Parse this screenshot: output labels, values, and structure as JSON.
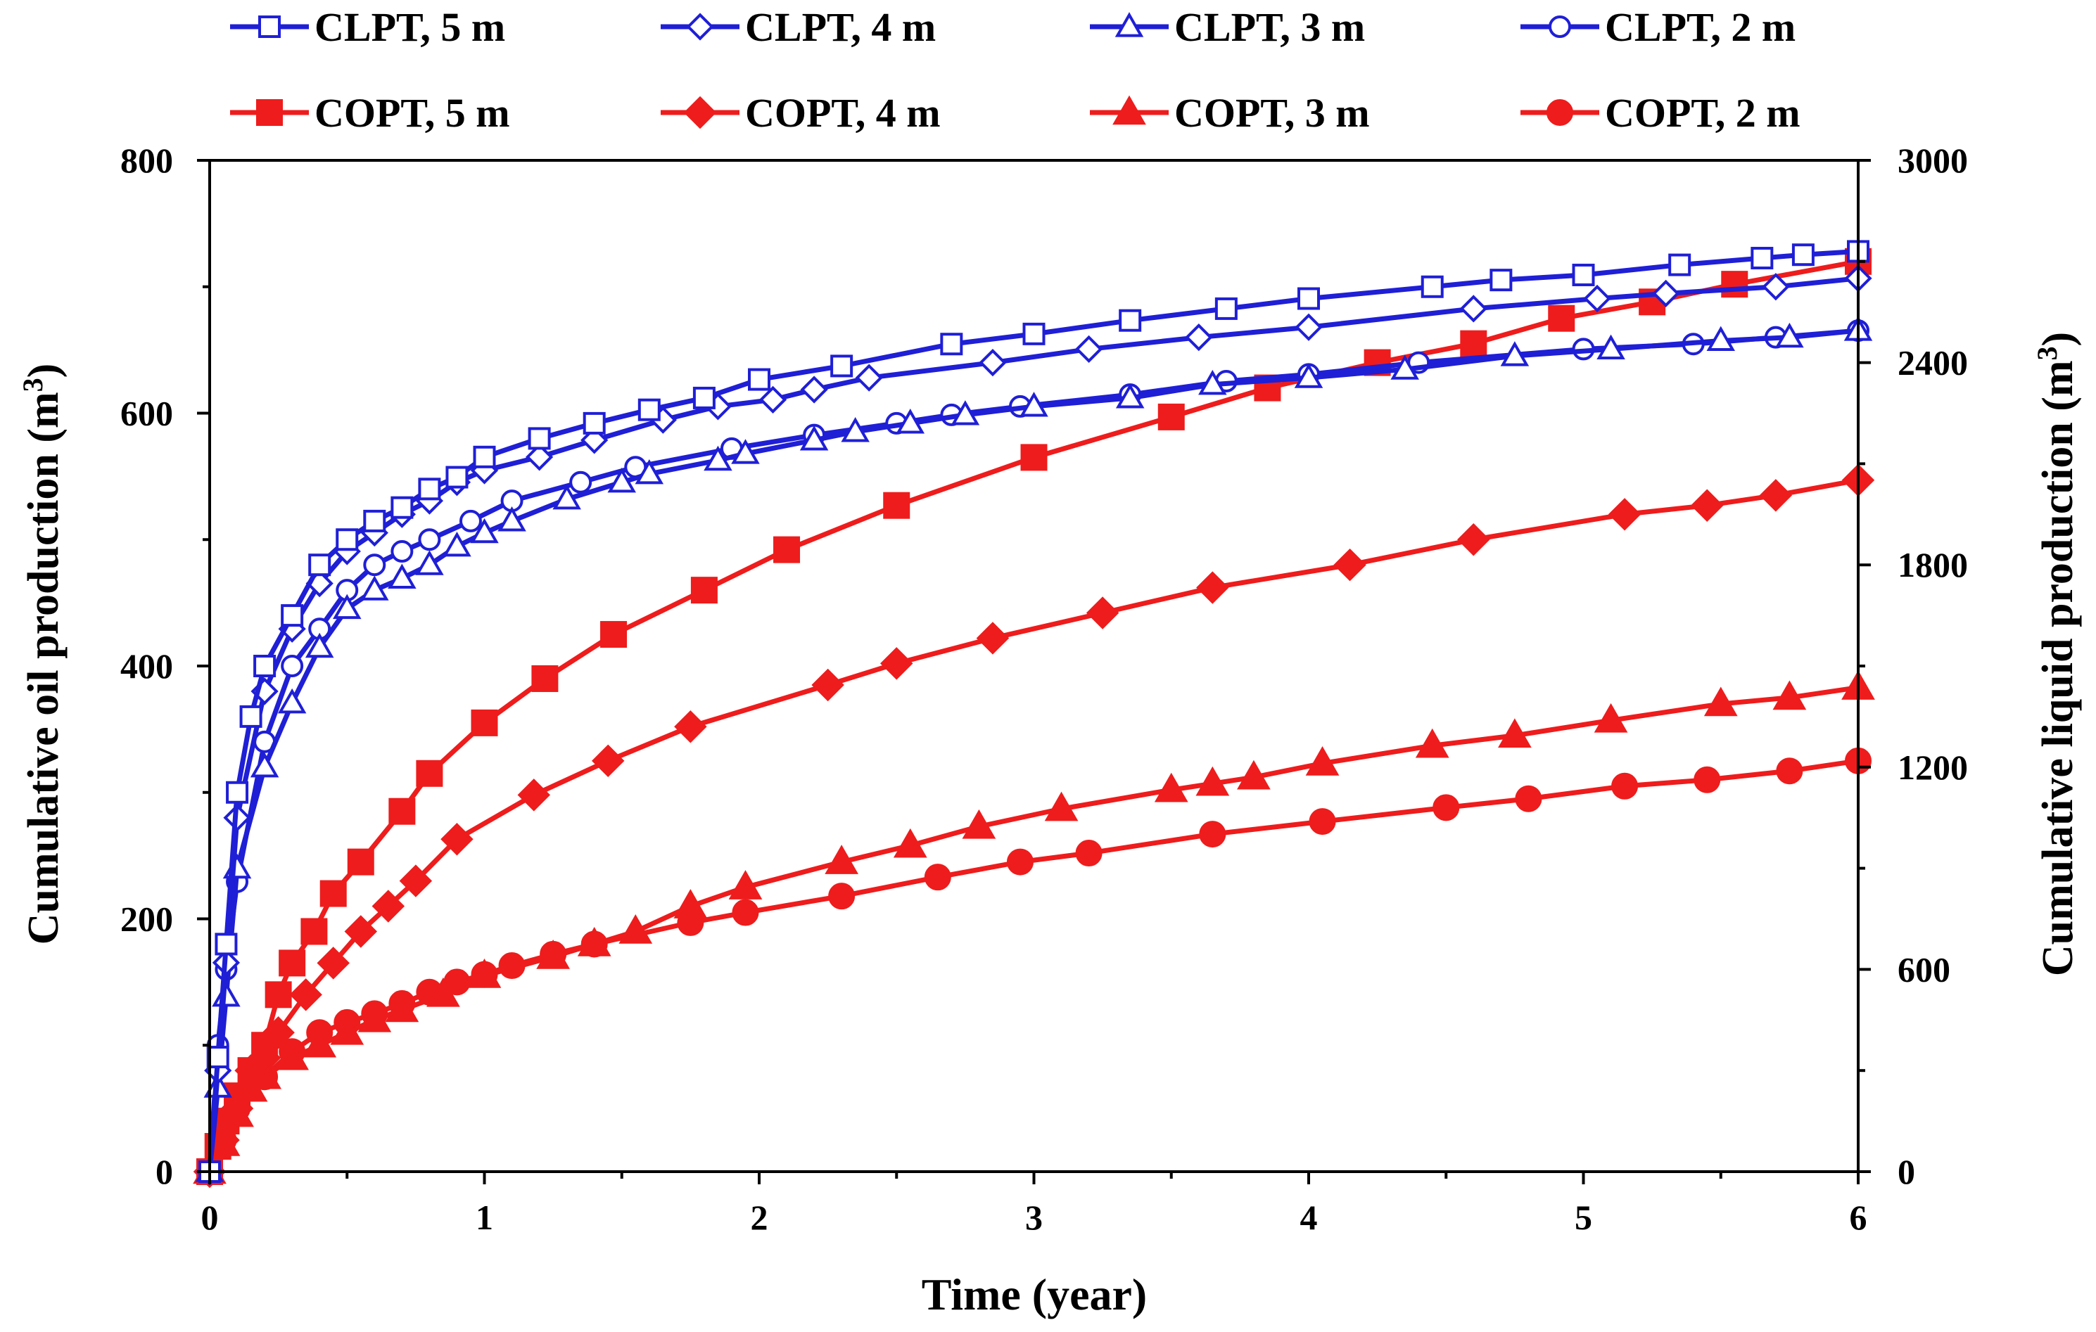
{
  "chart_data": {
    "type": "line",
    "xlabel": "Time (year)",
    "ylabel_left": "Cumulative oil production (m3)",
    "ylabel_right": "Cumulative liquid production (m3)",
    "ylabel_left_text": "Cumulative oil production (m",
    "ylabel_right_text": "Cumulative liquid production (m",
    "superscript": "3",
    "close_paren": ")",
    "xlim": [
      0,
      6
    ],
    "ylim_left": [
      0,
      800
    ],
    "ylim_right": [
      0,
      3000
    ],
    "x_ticks": [
      "0",
      "1",
      "2",
      "3",
      "4",
      "5",
      "6"
    ],
    "y_left_ticks": [
      "0",
      "200",
      "400",
      "600",
      "800"
    ],
    "y_right_ticks": [
      "0",
      "600",
      "1200",
      "1800",
      "2400",
      "3000"
    ],
    "grid": false,
    "legend_position": "top",
    "series": [
      {
        "name": "CLPT, 5 m",
        "axis": "right",
        "color": "#1f1fd6",
        "marker": "square",
        "filled": false,
        "x": [
          0,
          0.03,
          0.06,
          0.1,
          0.15,
          0.2,
          0.3,
          0.4,
          0.5,
          0.6,
          0.7,
          0.8,
          0.9,
          1.0,
          1.2,
          1.4,
          1.6,
          1.8,
          2.0,
          2.3,
          2.7,
          3.0,
          3.35,
          3.7,
          4.0,
          4.45,
          4.7,
          5.0,
          5.35,
          5.65,
          5.8,
          6.0
        ],
        "y": [
          0,
          340,
          675,
          1125,
          1350,
          1500,
          1650,
          1800,
          1875,
          1930,
          1970,
          2025,
          2060,
          2120,
          2175,
          2220,
          2260,
          2295,
          2350,
          2390,
          2455,
          2485,
          2525,
          2560,
          2590,
          2625,
          2645,
          2660,
          2690,
          2710,
          2720,
          2730
        ]
      },
      {
        "name": "CLPT, 4 m",
        "axis": "right",
        "color": "#1f1fd6",
        "marker": "diamond",
        "filled": false,
        "x": [
          0,
          0.03,
          0.06,
          0.1,
          0.2,
          0.3,
          0.4,
          0.5,
          0.6,
          0.7,
          0.8,
          0.9,
          1.0,
          1.2,
          1.4,
          1.65,
          1.85,
          2.05,
          2.2,
          2.4,
          2.85,
          3.2,
          3.6,
          4.0,
          4.6,
          5.05,
          5.3,
          5.7,
          6.0
        ],
        "y": [
          0,
          300,
          620,
          1050,
          1425,
          1610,
          1745,
          1840,
          1895,
          1950,
          1990,
          2045,
          2080,
          2120,
          2170,
          2230,
          2270,
          2290,
          2320,
          2355,
          2400,
          2440,
          2475,
          2505,
          2560,
          2590,
          2605,
          2625,
          2650
        ]
      },
      {
        "name": "CLPT, 3 m",
        "axis": "right",
        "color": "#1f1fd6",
        "marker": "triangle",
        "filled": false,
        "x": [
          0,
          0.03,
          0.06,
          0.1,
          0.2,
          0.3,
          0.4,
          0.5,
          0.6,
          0.7,
          0.8,
          0.9,
          1.0,
          1.1,
          1.3,
          1.5,
          1.6,
          1.85,
          1.95,
          2.2,
          2.35,
          2.55,
          2.75,
          3.0,
          3.35,
          3.65,
          4.0,
          4.35,
          4.75,
          5.1,
          5.5,
          5.75,
          6.0
        ],
        "y": [
          0,
          250,
          520,
          900,
          1200,
          1390,
          1555,
          1670,
          1725,
          1760,
          1800,
          1855,
          1895,
          1930,
          1995,
          2045,
          2070,
          2110,
          2130,
          2170,
          2195,
          2220,
          2245,
          2270,
          2295,
          2335,
          2355,
          2380,
          2420,
          2440,
          2465,
          2475,
          2495
        ]
      },
      {
        "name": "CLPT, 2 m",
        "axis": "right",
        "color": "#1f1fd6",
        "marker": "circle",
        "filled": false,
        "x": [
          0,
          0.03,
          0.06,
          0.1,
          0.2,
          0.3,
          0.4,
          0.5,
          0.6,
          0.7,
          0.8,
          0.95,
          1.1,
          1.35,
          1.55,
          1.9,
          2.2,
          2.5,
          2.7,
          2.95,
          3.35,
          3.7,
          4.0,
          4.4,
          5.0,
          5.4,
          5.7,
          6.0
        ],
        "y": [
          0,
          375,
          600,
          860,
          1275,
          1500,
          1610,
          1725,
          1800,
          1840,
          1875,
          1930,
          1990,
          2045,
          2090,
          2145,
          2185,
          2220,
          2245,
          2270,
          2305,
          2345,
          2365,
          2400,
          2440,
          2455,
          2475,
          2495
        ]
      },
      {
        "name": "COPT, 5 m",
        "axis": "left",
        "color": "#ee1c1c",
        "marker": "square",
        "filled": true,
        "x": [
          0,
          0.03,
          0.06,
          0.1,
          0.15,
          0.2,
          0.25,
          0.3,
          0.38,
          0.45,
          0.55,
          0.7,
          0.8,
          1.0,
          1.22,
          1.47,
          1.8,
          2.1,
          2.5,
          3.0,
          3.5,
          3.85,
          4.25,
          4.6,
          4.92,
          5.25,
          5.55,
          6.0
        ],
        "y": [
          0,
          20,
          40,
          60,
          80,
          100,
          140,
          165,
          190,
          220,
          245,
          285,
          315,
          355,
          390,
          425,
          460,
          492,
          527,
          565,
          597,
          620,
          640,
          655,
          675,
          688,
          702,
          720
        ]
      },
      {
        "name": "COPT, 4 m",
        "axis": "left",
        "color": "#ee1c1c",
        "marker": "diamond",
        "filled": true,
        "x": [
          0,
          0.05,
          0.1,
          0.15,
          0.2,
          0.25,
          0.35,
          0.45,
          0.55,
          0.65,
          0.75,
          0.9,
          1.18,
          1.45,
          1.75,
          2.25,
          2.5,
          2.85,
          3.25,
          3.65,
          4.15,
          4.6,
          5.15,
          5.45,
          5.7,
          6.0
        ],
        "y": [
          0,
          25,
          50,
          80,
          90,
          110,
          140,
          165,
          190,
          210,
          230,
          263,
          298,
          325,
          352,
          385,
          402,
          422,
          442,
          462,
          480,
          500,
          520,
          527,
          535,
          547
        ]
      },
      {
        "name": "COPT, 3 m",
        "axis": "left",
        "color": "#ee1c1c",
        "marker": "triangle",
        "filled": true,
        "x": [
          0,
          0.05,
          0.1,
          0.15,
          0.2,
          0.3,
          0.4,
          0.5,
          0.6,
          0.7,
          0.85,
          1.0,
          1.25,
          1.4,
          1.55,
          1.75,
          1.95,
          2.3,
          2.55,
          2.8,
          3.1,
          3.5,
          3.65,
          3.8,
          4.05,
          4.45,
          4.75,
          5.1,
          5.5,
          5.75,
          6.0
        ],
        "y": [
          0,
          22,
          45,
          65,
          75,
          90,
          100,
          110,
          120,
          128,
          140,
          155,
          170,
          180,
          190,
          210,
          225,
          245,
          258,
          273,
          287,
          302,
          307,
          312,
          323,
          337,
          345,
          357,
          370,
          375,
          383
        ]
      },
      {
        "name": "COPT, 2 m",
        "axis": "left",
        "color": "#ee1c1c",
        "marker": "circle",
        "filled": true,
        "x": [
          0,
          0.05,
          0.1,
          0.2,
          0.3,
          0.4,
          0.5,
          0.6,
          0.7,
          0.8,
          0.9,
          1.0,
          1.1,
          1.25,
          1.4,
          1.75,
          1.95,
          2.3,
          2.65,
          2.95,
          3.2,
          3.65,
          4.05,
          4.5,
          4.8,
          5.15,
          5.45,
          5.75,
          6.0
        ],
        "y": [
          0,
          25,
          50,
          75,
          95,
          110,
          118,
          125,
          133,
          142,
          150,
          156,
          163,
          172,
          180,
          197,
          205,
          218,
          233,
          245,
          252,
          267,
          277,
          288,
          295,
          305,
          310,
          317,
          325
        ]
      }
    ]
  }
}
